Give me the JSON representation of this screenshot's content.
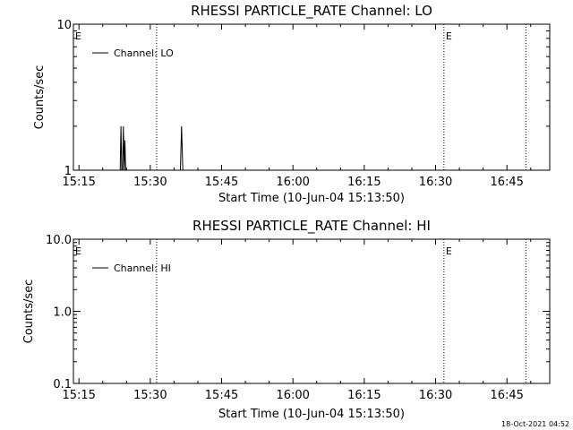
{
  "footer": {
    "timestamp": "18-Oct-2021 04:52"
  },
  "chart_data": [
    {
      "type": "line",
      "title": "RHESSI PARTICLE_RATE Channel: LO",
      "xlabel": "Start Time (10-Jun-04 15:13:50)",
      "ylabel": "Counts/sec",
      "yscale": "log",
      "ylim": [
        1,
        10
      ],
      "yticks": [
        {
          "v": 1,
          "label": "1"
        },
        {
          "v": 10,
          "label": "10"
        }
      ],
      "xlim": [
        "15:13:50",
        "16:54:00"
      ],
      "xticks": [
        {
          "t": "15:15",
          "label": "15:15"
        },
        {
          "t": "15:30",
          "label": "15:30"
        },
        {
          "t": "15:45",
          "label": "15:45"
        },
        {
          "t": "16:00",
          "label": "16:00"
        },
        {
          "t": "16:15",
          "label": "16:15"
        },
        {
          "t": "16:30",
          "label": "16:30"
        },
        {
          "t": "16:45",
          "label": "16:45"
        }
      ],
      "markers": [
        {
          "t": "15:13:50",
          "label": "E"
        },
        {
          "t": "15:31:20",
          "label": ""
        },
        {
          "t": "16:31:45",
          "label": "E"
        },
        {
          "t": "16:49:00",
          "label": ""
        }
      ],
      "legend": "top-left",
      "series": [
        {
          "name": "Channel: LO",
          "points": [
            [
              "15:23:40",
              1
            ],
            [
              "15:23:50",
              2
            ],
            [
              "15:24:00",
              1
            ],
            [
              "15:24:10",
              1
            ],
            [
              "15:24:20",
              2
            ],
            [
              "15:24:30",
              1
            ],
            [
              "15:24:40",
              1.6
            ],
            [
              "15:24:50",
              1
            ],
            [
              "15:36:20",
              1
            ],
            [
              "15:36:35",
              2
            ],
            [
              "15:36:50",
              1
            ]
          ]
        }
      ]
    },
    {
      "type": "line",
      "title": "RHESSI PARTICLE_RATE Channel: HI",
      "xlabel": "Start Time (10-Jun-04 15:13:50)",
      "ylabel": "Counts/sec",
      "yscale": "log",
      "ylim": [
        0.1,
        10
      ],
      "yticks": [
        {
          "v": 0.1,
          "label": "0.1"
        },
        {
          "v": 1,
          "label": "1.0"
        },
        {
          "v": 10,
          "label": "10.0"
        }
      ],
      "xlim": [
        "15:13:50",
        "16:54:00"
      ],
      "xticks": [
        {
          "t": "15:15",
          "label": "15:15"
        },
        {
          "t": "15:30",
          "label": "15:30"
        },
        {
          "t": "15:45",
          "label": "15:45"
        },
        {
          "t": "16:00",
          "label": "16:00"
        },
        {
          "t": "16:15",
          "label": "16:15"
        },
        {
          "t": "16:30",
          "label": "16:30"
        },
        {
          "t": "16:45",
          "label": "16:45"
        }
      ],
      "markers": [
        {
          "t": "15:13:50",
          "label": "E"
        },
        {
          "t": "15:31:20",
          "label": ""
        },
        {
          "t": "16:31:45",
          "label": "E"
        },
        {
          "t": "16:49:00",
          "label": ""
        }
      ],
      "legend": "top-left",
      "series": [
        {
          "name": "Channel: HI",
          "points": []
        }
      ]
    }
  ]
}
